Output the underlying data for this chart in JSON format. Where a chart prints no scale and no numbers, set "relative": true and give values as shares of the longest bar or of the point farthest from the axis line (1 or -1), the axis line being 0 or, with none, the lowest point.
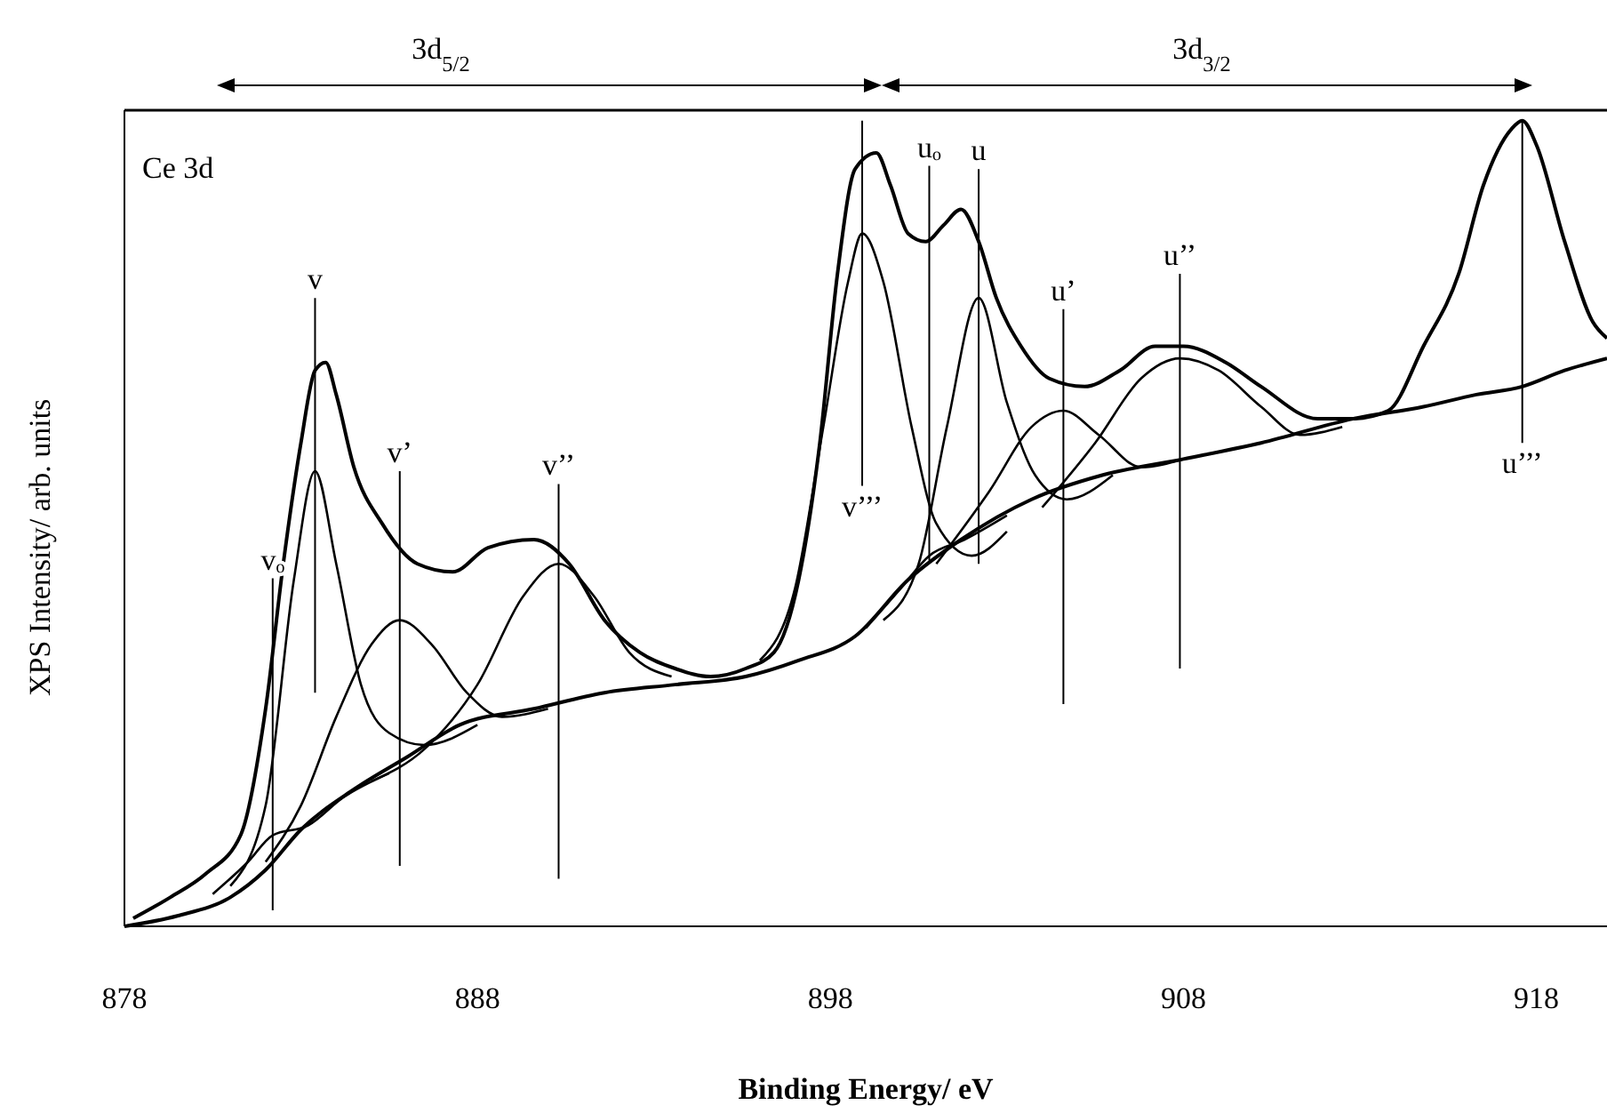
{
  "chart_data": {
    "type": "line",
    "xlabel": "Binding Energy/ eV",
    "ylabel": "XPS Intensity/ arb. units",
    "relative": true,
    "marker": "none",
    "line_style": "solid",
    "xlim": [
      878,
      920
    ],
    "xticks": [
      878,
      888,
      898,
      908,
      918
    ],
    "annotations": [
      "Ce 3d",
      "3d$_{5/2}$",
      "3d$_{3/2}$"
    ],
    "series": [
      {
        "color": "#000000",
        "x": [
          878.25,
          879.3,
          880.3,
          881.3,
          882.0,
          882.5,
          883.0,
          883.4,
          883.7,
          884.0,
          884.5,
          885.3,
          886.3,
          887.3,
          888.3,
          889.6,
          890.6,
          891.6,
          892.6,
          893.6,
          894.6,
          895.6,
          896.4,
          897.1,
          897.7,
          898.2,
          898.7,
          899.3,
          899.7,
          900.2,
          900.7,
          901.2,
          901.7,
          902.2,
          902.7,
          903.4,
          904.2,
          905.2,
          906.2,
          907.2,
          908.0,
          909.2,
          910.2,
          911.8,
          912.8,
          913.8,
          914.8,
          915.8,
          916.5,
          917.3,
          917.6,
          918.0,
          918.8,
          919.6,
          920.0
        ],
        "values": [
          0.01,
          0.036,
          0.065,
          0.114,
          0.27,
          0.45,
          0.6,
          0.69,
          0.7,
          0.66,
          0.57,
          0.5,
          0.45,
          0.44,
          0.47,
          0.48,
          0.45,
          0.38,
          0.34,
          0.32,
          0.31,
          0.32,
          0.34,
          0.43,
          0.6,
          0.81,
          0.94,
          0.96,
          0.92,
          0.86,
          0.85,
          0.87,
          0.89,
          0.85,
          0.78,
          0.72,
          0.68,
          0.67,
          0.69,
          0.72,
          0.72,
          0.7,
          0.67,
          0.63,
          0.63,
          0.64,
          0.72,
          0.81,
          0.92,
          0.99,
          1.0,
          0.97,
          0.85,
          0.75,
          0.73
        ]
      },
      {
        "color": "#000000",
        "x": [
          878,
          879.5,
          881,
          882,
          883,
          884.5,
          886,
          887.5,
          889.6,
          891.6,
          893.6,
          895.6,
          897.1,
          898.7,
          900.2,
          901.7,
          903.7,
          905.7,
          908,
          910.2,
          912.8,
          914.8,
          916.3,
          917.6,
          918.8,
          920
        ],
        "values": [
          0,
          0.013,
          0.036,
          0.07,
          0.12,
          0.17,
          0.21,
          0.25,
          0.27,
          0.29,
          0.3,
          0.31,
          0.33,
          0.36,
          0.43,
          0.48,
          0.53,
          0.56,
          0.58,
          0.6,
          0.63,
          0.645,
          0.66,
          0.67,
          0.69,
          0.705
        ]
      },
      {
        "color": "#000000",
        "x": [
          880.5,
          881.5,
          882.2,
          883.2,
          884.2,
          885.5
        ],
        "values": [
          0.04,
          0.08,
          0.113,
          0.125,
          0.16,
          0.19
        ]
      },
      {
        "color": "#000000",
        "x": [
          881,
          882,
          882.8,
          883.4,
          884,
          884.7,
          885.5,
          886.5,
          888
        ],
        "values": [
          0.05,
          0.15,
          0.43,
          0.565,
          0.45,
          0.3,
          0.24,
          0.225,
          0.25
        ]
      },
      {
        "color": "#000000",
        "x": [
          882,
          883,
          884,
          885,
          885.8,
          886.7,
          887.7,
          888.7,
          890
        ],
        "values": [
          0.08,
          0.15,
          0.26,
          0.35,
          0.38,
          0.35,
          0.29,
          0.26,
          0.27
        ]
      },
      {
        "color": "#000000",
        "x": [
          885,
          886.5,
          888,
          889.3,
          890.3,
          891.3,
          892.3,
          893.5
        ],
        "values": [
          0.18,
          0.22,
          0.3,
          0.41,
          0.45,
          0.41,
          0.34,
          0.31
        ]
      },
      {
        "color": "#000000",
        "x": [
          896,
          897,
          897.8,
          898.5,
          898.9,
          899.5,
          900.3,
          901,
          902,
          903
        ],
        "values": [
          0.33,
          0.42,
          0.62,
          0.8,
          0.86,
          0.8,
          0.62,
          0.5,
          0.46,
          0.49
        ]
      },
      {
        "color": "#000000",
        "x": [
          899,
          900,
          900.8,
          901.8,
          903
        ],
        "values": [
          0.37,
          0.42,
          0.46,
          0.48,
          0.51
        ]
      },
      {
        "color": "#000000",
        "x": [
          899.5,
          900.5,
          901.3,
          902.2,
          903,
          903.8,
          904.7,
          906
        ],
        "values": [
          0.38,
          0.45,
          0.62,
          0.78,
          0.65,
          0.56,
          0.53,
          0.56
        ]
      },
      {
        "color": "#000000",
        "x": [
          901,
          902.5,
          903.7,
          904.6,
          905.6,
          906.8,
          908
        ],
        "values": [
          0.45,
          0.54,
          0.62,
          0.64,
          0.61,
          0.57,
          0.58
        ]
      },
      {
        "color": "#000000",
        "x": [
          904,
          905.5,
          906.8,
          907.9,
          909,
          910.2,
          911.3,
          912.5
        ],
        "values": [
          0.52,
          0.6,
          0.68,
          0.705,
          0.69,
          0.645,
          0.61,
          0.62
        ]
      }
    ],
    "ref_lines": [
      {
        "axis": "x",
        "value": 882.2,
        "label": "vₒ",
        "color": "#000000"
      },
      {
        "axis": "x",
        "value": 883.4,
        "label": "v",
        "color": "#000000"
      },
      {
        "axis": "x",
        "value": 885.8,
        "label": "v’",
        "color": "#000000"
      },
      {
        "axis": "x",
        "value": 890.3,
        "label": "v’’",
        "color": "#000000"
      },
      {
        "axis": "x",
        "value": 898.9,
        "label": "v’’’",
        "color": "#000000"
      },
      {
        "axis": "x",
        "value": 900.8,
        "label": "uₒ",
        "color": "#000000"
      },
      {
        "axis": "x",
        "value": 902.2,
        "label": "u",
        "color": "#000000"
      },
      {
        "axis": "x",
        "value": 904.6,
        "label": "u’",
        "color": "#000000"
      },
      {
        "axis": "x",
        "value": 907.9,
        "label": "u’’",
        "color": "#000000"
      },
      {
        "axis": "x",
        "value": 917.6,
        "label": "u’’’",
        "color": "#000000"
      }
    ]
  }
}
